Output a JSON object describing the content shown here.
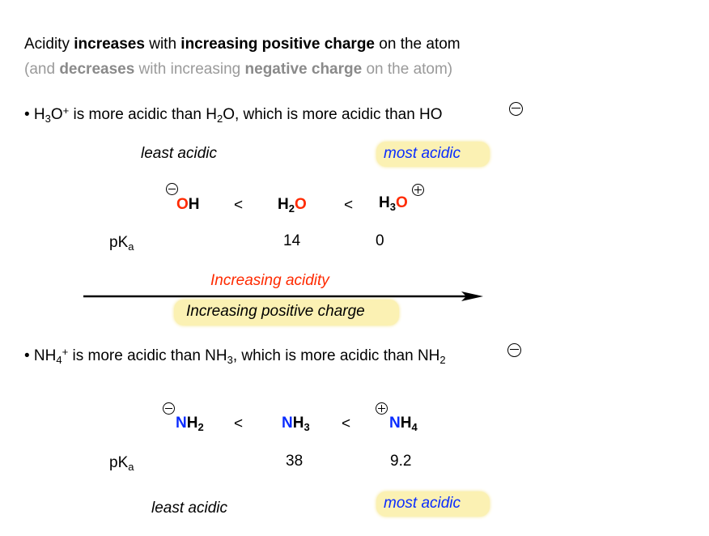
{
  "heading": {
    "line1": {
      "p1": "Acidity ",
      "b1": "increases",
      "p2": " with ",
      "b2": "increasing positive charge",
      "p3": " on the atom"
    },
    "line2": {
      "p1": "(and ",
      "b1": "decreases",
      "p2": " with increasing ",
      "b2": "negative charge",
      "p3": " on the atom)"
    }
  },
  "oxygen": {
    "bullet": {
      "dot": "•",
      "a": " H",
      "a_sub": "3",
      "b": "O",
      "b_sup": "+",
      "c": " is more acidic than H",
      "c_sub": "2",
      "d": "O, which is more acidic than HO"
    },
    "least": "least acidic",
    "most": "most acidic",
    "species": [
      {
        "pre": "",
        "atom": "O",
        "post": "H",
        "sub": "",
        "charge": "minus"
      },
      {
        "pre": "H",
        "pre_sub": "2",
        "atom": "O",
        "post": "",
        "charge": "none"
      },
      {
        "pre": "H",
        "pre_sub": "3",
        "atom": "O",
        "post": "",
        "charge": "plus"
      }
    ],
    "lt": "<",
    "pka_label": "pK",
    "pka_sub": "a",
    "pka": [
      "14",
      "0"
    ],
    "arrow_top": "Increasing acidity",
    "arrow_bottom": "Increasing positive charge"
  },
  "nitrogen": {
    "bullet": {
      "dot": "•",
      "a": " NH",
      "a_sub": "4",
      "a_sup": "+",
      "c": " is more acidic than NH",
      "c_sub": "3",
      "d": ", which is more acidic than NH",
      "d_sub": "2"
    },
    "species": [
      {
        "atom": "N",
        "post": "H",
        "sub": "2",
        "charge": "minus"
      },
      {
        "atom": "N",
        "post": "H",
        "sub": "3",
        "charge": "none"
      },
      {
        "atom": "N",
        "post": "H",
        "sub": "4",
        "charge": "plus"
      }
    ],
    "lt": "<",
    "pka_label": "pK",
    "pka_sub": "a",
    "pka": [
      "38",
      "9.2"
    ],
    "least": "least acidic",
    "most": "most acidic"
  },
  "colors": {
    "oxygen": "#ff2a00",
    "nitrogen": "#0a2cff",
    "highlight": "#fbf1b3",
    "gray": "#9a9a9a"
  }
}
